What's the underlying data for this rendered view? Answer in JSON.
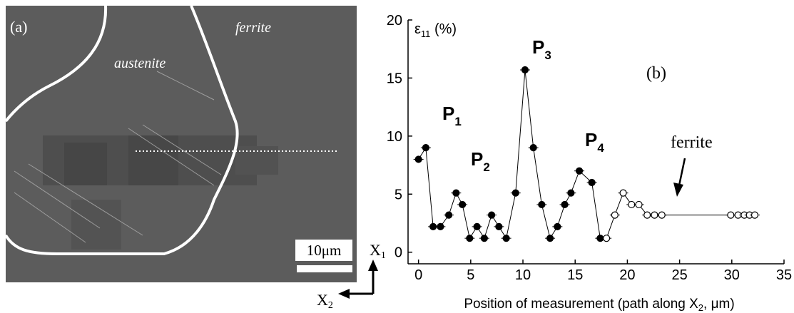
{
  "image_panel": {
    "panel_label": "(a)",
    "labels": [
      "austenite",
      "ferrite"
    ],
    "scale_bar": "10μm",
    "axis_1": {
      "text": "X",
      "sub": "1"
    },
    "axis_2": {
      "text": "X",
      "sub": "2"
    }
  },
  "chart_data": {
    "type": "line",
    "panel_label": "(b)",
    "y_label": {
      "text": "ε",
      "sub": "11",
      "tail": " (%)"
    },
    "x_label": {
      "text": "Position of measurement (path along X",
      "sub": "2",
      "tail": ", μm)"
    },
    "xlim": [
      -1,
      35
    ],
    "ylim": [
      -1,
      20
    ],
    "xticks": [
      0,
      5,
      10,
      15,
      20,
      25,
      30,
      35
    ],
    "yticks": [
      0,
      5,
      10,
      15,
      20
    ],
    "series": [
      {
        "color": "#000000",
        "x": [
          0,
          0.7,
          1.4,
          2.1,
          2.9,
          3.6,
          4.2,
          4.9,
          5.6,
          6.3,
          7.0,
          7.7,
          8.4,
          9.3,
          10.2,
          11.0,
          11.8,
          12.6,
          13.3,
          14.0,
          14.6,
          15.4,
          16.6,
          17.4
        ],
        "values": [
          8,
          9,
          2.2,
          2.2,
          3.2,
          5.1,
          4.1,
          1.2,
          2.2,
          1.2,
          3.2,
          2.2,
          1.2,
          5.1,
          15.7,
          9.0,
          4.1,
          1.2,
          2.2,
          4.1,
          5.1,
          7.0,
          6.0,
          1.2
        ]
      },
      {
        "color": "#ffffff",
        "x": [
          18.0,
          18.8,
          19.6,
          20.4,
          21.1,
          21.9,
          22.6,
          23.3,
          29.9,
          30.6,
          31.2,
          31.7,
          32.2
        ],
        "values": [
          1.2,
          3.2,
          5.1,
          4.1,
          4.1,
          3.2,
          3.2,
          3.2,
          3.2,
          3.2,
          3.2,
          3.2,
          3.2
        ]
      }
    ],
    "annotations": [
      {
        "text": "P",
        "sub": "1"
      },
      {
        "text": "P",
        "sub": "2"
      },
      {
        "text": "P",
        "sub": "3"
      },
      {
        "text": "P",
        "sub": "4"
      }
    ],
    "arrow_label": "ferrite"
  }
}
